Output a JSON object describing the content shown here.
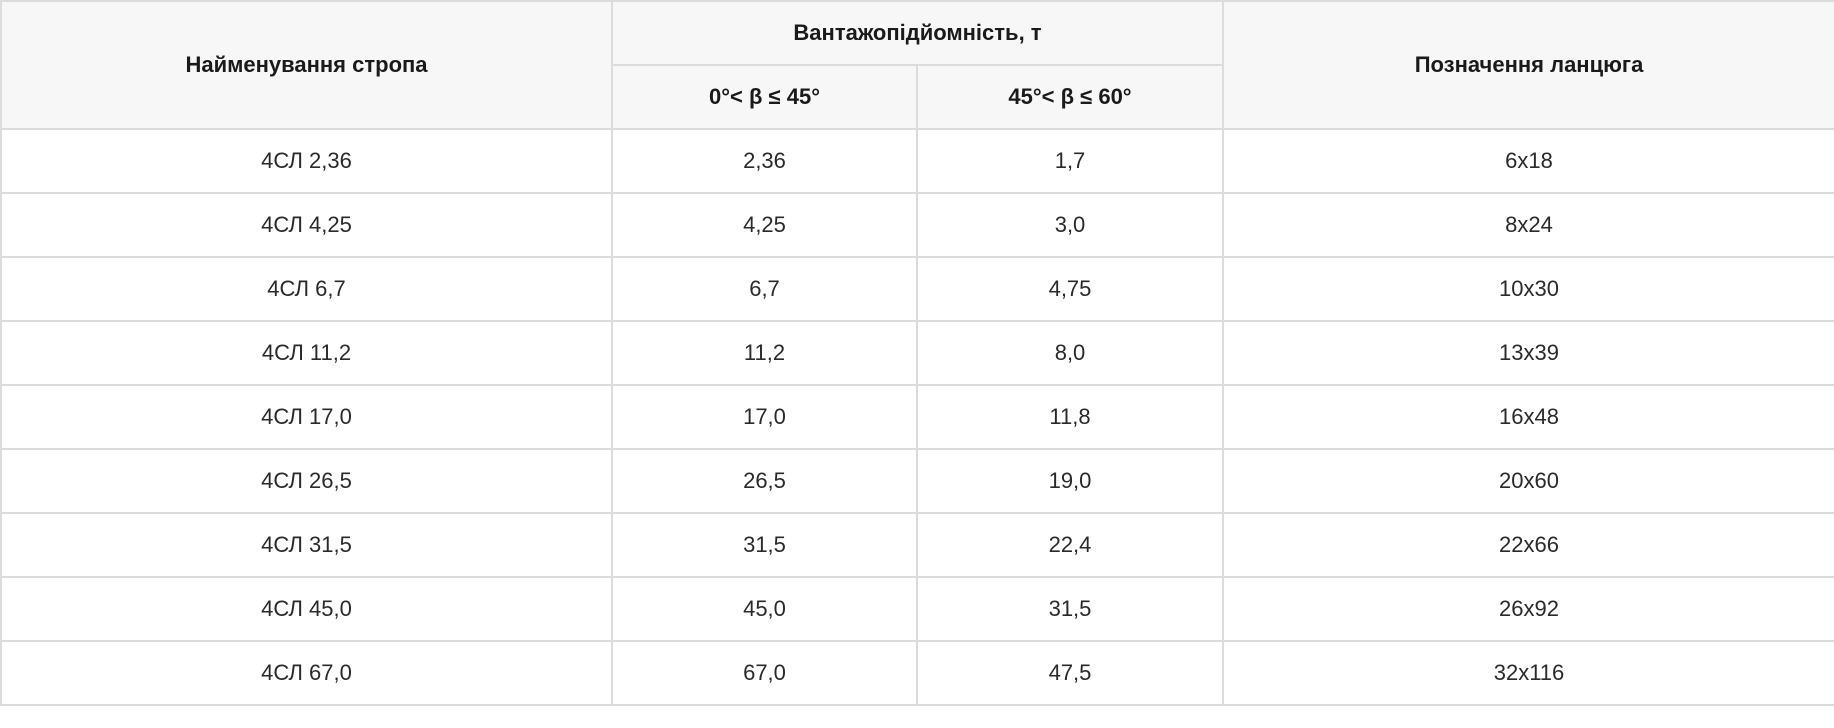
{
  "table": {
    "headers": {
      "sling_name": "Найменування стропа",
      "capacity_group": "Вантажопідйомність, т",
      "angle_range_1": "0°< β ≤ 45°",
      "angle_range_2": "45°< β ≤ 60°",
      "chain_designation": "Позначення ланцюга"
    },
    "rows": [
      [
        "4СЛ 2,36",
        "2,36",
        "1,7",
        "6x18"
      ],
      [
        "4СЛ 4,25",
        "4,25",
        "3,0",
        "8x24"
      ],
      [
        "4СЛ 6,7",
        "6,7",
        "4,75",
        "10x30"
      ],
      [
        "4СЛ 11,2",
        "11,2",
        "8,0",
        "13x39"
      ],
      [
        "4СЛ 17,0",
        "17,0",
        "11,8",
        "16x48"
      ],
      [
        "4СЛ 26,5",
        "26,5",
        "19,0",
        "20x60"
      ],
      [
        "4СЛ 31,5",
        "31,5",
        "22,4",
        "22x66"
      ],
      [
        "4СЛ 45,0",
        "45,0",
        "31,5",
        "26x92"
      ],
      [
        "4СЛ 67,0",
        "67,0",
        "47,5",
        "32x116"
      ]
    ]
  }
}
